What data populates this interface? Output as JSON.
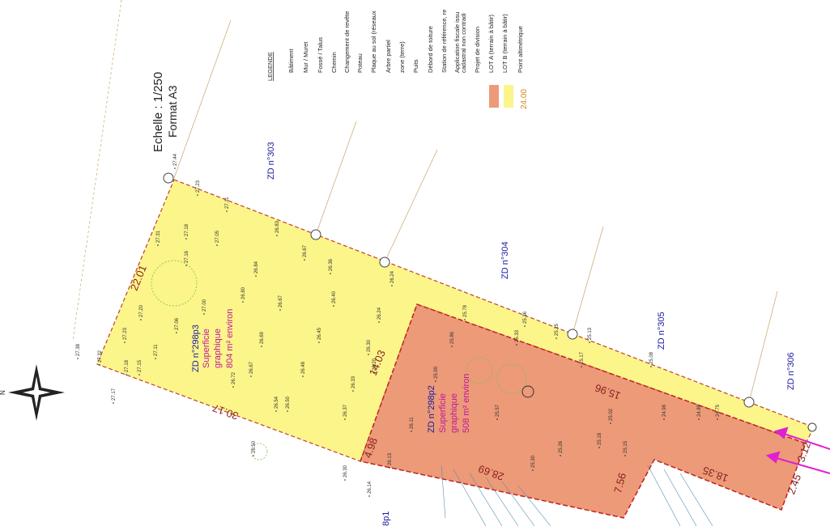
{
  "header": {
    "scale": "Echelle : 1/250",
    "format": "Format A3"
  },
  "legend": {
    "title": "LEGENDE",
    "items": [
      "Bâtiment",
      "Mur / Muret",
      "Fossé / Talus",
      "Chemin",
      "Changement de revête",
      "Poteau",
      "Plaque au sol (réseaux",
      "Arbre partiel",
      "zone (terre)",
      "Puits",
      "Débord de toiture",
      "Station de référence, re",
      "Application fiscale issu",
      "cadastral non contradi",
      "Projet de division",
      "LOT A (terrain à bâtir)",
      "LOT B (terrain à bâtir)",
      "Point altimétrique"
    ],
    "sample_value": "24.00"
  },
  "compass": "N",
  "parcels": [
    "ZD n°303",
    "ZD n°304",
    "ZD n°305",
    "ZD n°306",
    "8p1"
  ],
  "lots": [
    {
      "id": "ZD n°298p3",
      "line1": "Superficie",
      "line2": "graphique",
      "area": "804 m² environ"
    },
    {
      "id": "ZD n°298p2",
      "line1": "Superficie",
      "line2": "graphique",
      "area": "508 m² environ"
    }
  ],
  "dimensions": [
    "22.01",
    "14.03",
    "30.17",
    "4.98",
    "15.96",
    "28.69",
    "7.56",
    "18.35",
    "2.45",
    "3.12"
  ],
  "elevations": [
    "27.44",
    "27.23",
    "27.11",
    "27.18",
    "27.05",
    "26.83",
    "27.31",
    "27.16",
    "26.67",
    "26.84",
    "26.36",
    "26.24",
    "27.20",
    "27.06",
    "27.00",
    "26.80",
    "26.67",
    "26.40",
    "27.23",
    "27.11",
    "26.72",
    "26.69",
    "26.45",
    "26.24",
    "27.18",
    "27.15",
    "26.67",
    "26.48",
    "26.30",
    "26.54",
    "26.50",
    "26.33",
    "26.37",
    "26.20",
    "26.11",
    "25.99",
    "25.86",
    "25.78",
    "25.57",
    "25.33",
    "25.36",
    "25.25",
    "25.13",
    "25.02",
    "25.17",
    "25.08",
    "24.98",
    "24.85",
    "24.75",
    "25.18",
    "25.15",
    "25.26",
    "25.30",
    "26.13",
    "26.14",
    "26.30",
    "27.38",
    "27.32",
    "26.50",
    "27.17"
  ]
}
